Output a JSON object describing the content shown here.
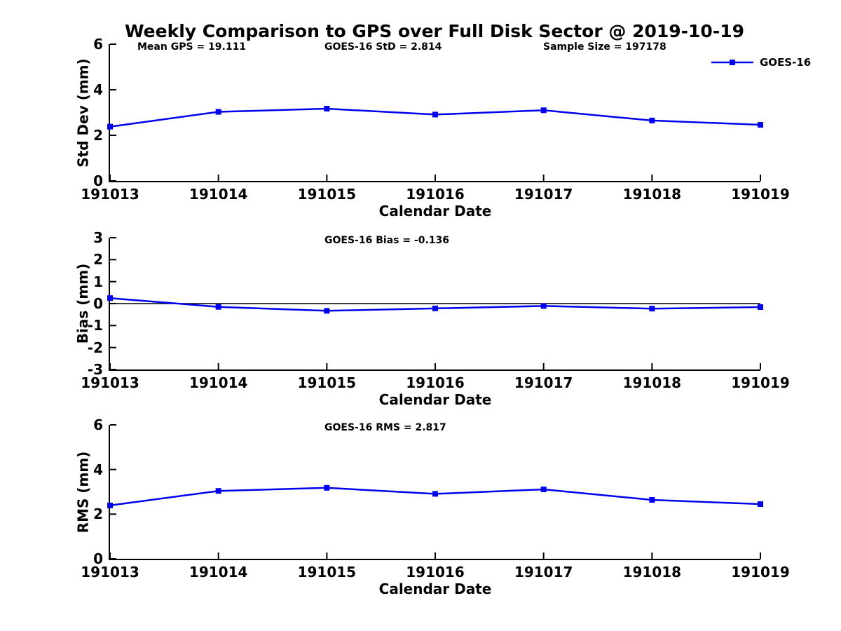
{
  "title": "Weekly Comparison to GPS over Full Disk Sector @ 2019-10-19",
  "legend": {
    "label": "GOES-16",
    "position": "top-right"
  },
  "colors": {
    "line": "#0000EE",
    "axis": "#000000",
    "background": "#FFFFFF",
    "text": "#000000"
  },
  "chart_data": [
    {
      "type": "line",
      "name": "stddev",
      "ylabel": "Std Dev (mm)",
      "xlabel": "Calendar Date",
      "x": [
        "191013",
        "191014",
        "191015",
        "191016",
        "191017",
        "191018",
        "191019"
      ],
      "ylim": [
        0,
        6
      ],
      "yticks": [
        0,
        2,
        4,
        6
      ],
      "grid": false,
      "zero_line": false,
      "series": [
        {
          "name": "GOES-16",
          "marker": "square",
          "values": [
            2.38,
            3.03,
            3.17,
            2.91,
            3.1,
            2.65,
            2.46
          ]
        }
      ],
      "annotations": [
        {
          "text": "Mean GPS = 19.111",
          "xfrac": 0.042
        },
        {
          "text": "GOES-16 StD = 2.814",
          "xfrac": 0.33
        },
        {
          "text": "Sample Size = 197178",
          "xfrac": 0.666
        }
      ]
    },
    {
      "type": "line",
      "name": "bias",
      "ylabel": "Bias (mm)",
      "xlabel": "Calendar Date",
      "x": [
        "191013",
        "191014",
        "191015",
        "191016",
        "191017",
        "191018",
        "191019"
      ],
      "ylim": [
        -3,
        3
      ],
      "yticks": [
        -3,
        -2,
        -1,
        0,
        1,
        2,
        3
      ],
      "grid": false,
      "zero_line": true,
      "series": [
        {
          "name": "GOES-16",
          "marker": "square",
          "values": [
            0.25,
            -0.15,
            -0.33,
            -0.22,
            -0.11,
            -0.23,
            -0.16
          ]
        }
      ],
      "annotations": [
        {
          "text": "GOES-16 Bias  = -0.136",
          "xfrac": 0.33
        }
      ]
    },
    {
      "type": "line",
      "name": "rms",
      "ylabel": "RMS (mm)",
      "xlabel": "Calendar Date",
      "x": [
        "191013",
        "191014",
        "191015",
        "191016",
        "191017",
        "191018",
        "191019"
      ],
      "ylim": [
        0,
        6
      ],
      "yticks": [
        0,
        2,
        4,
        6
      ],
      "grid": false,
      "zero_line": false,
      "series": [
        {
          "name": "GOES-16",
          "marker": "square",
          "values": [
            2.39,
            3.04,
            3.18,
            2.91,
            3.11,
            2.64,
            2.45
          ]
        }
      ],
      "annotations": [
        {
          "text": "GOES-16 RMS = 2.817",
          "xfrac": 0.33
        }
      ]
    }
  ]
}
